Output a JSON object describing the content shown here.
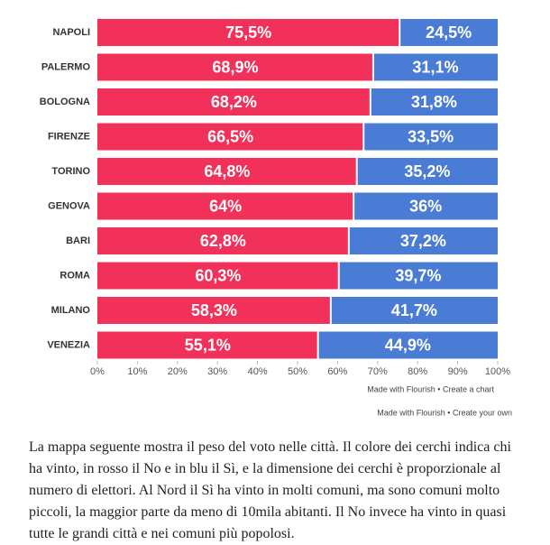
{
  "chart_data": {
    "type": "stacked-bar-horizontal",
    "categories": [
      "NAPOLI",
      "PALERMO",
      "BOLOGNA",
      "FIRENZE",
      "TORINO",
      "GENOVA",
      "BARI",
      "ROMA",
      "MILANO",
      "VENEZIA"
    ],
    "series": [
      {
        "color": "#f2315a",
        "values": [
          75.5,
          68.9,
          68.2,
          66.5,
          64.8,
          64,
          62.8,
          60.3,
          58.3,
          55.1
        ],
        "value_labels": [
          "75,5%",
          "68,9%",
          "68,2%",
          "66,5%",
          "64,8%",
          "64%",
          "62,8%",
          "60,3%",
          "58,3%",
          "55,1%"
        ]
      },
      {
        "color": "#4a7cd6",
        "values": [
          24.5,
          31.1,
          31.8,
          33.5,
          35.2,
          36,
          37.2,
          39.7,
          41.7,
          44.9
        ],
        "value_labels": [
          "24,5%",
          "31,1%",
          "31,8%",
          "33,5%",
          "35,2%",
          "36%",
          "37,2%",
          "39,7%",
          "41,7%",
          "44,9%"
        ]
      }
    ],
    "xlim": [
      0,
      100
    ],
    "xticks": [
      {
        "value": 0,
        "label": "0%"
      },
      {
        "value": 10,
        "label": "10%"
      },
      {
        "value": 20,
        "label": "20%"
      },
      {
        "value": 30,
        "label": "30%"
      },
      {
        "value": 40,
        "label": "40%"
      },
      {
        "value": 50,
        "label": "50%"
      },
      {
        "value": 60,
        "label": "60%"
      },
      {
        "value": 70,
        "label": "70%"
      },
      {
        "value": 80,
        "label": "80%"
      },
      {
        "value": 90,
        "label": "90%"
      },
      {
        "value": 100,
        "label": "100%"
      }
    ],
    "footer": "Made with Flourish • Create a chart"
  },
  "page_footer": "Made with Flourish • Create your own",
  "paragraph": "La mappa seguente mostra il peso del voto nelle città. Il colore dei cerchi indica chi ha vinto, in rosso il No e in blu il Sì, e la dimensione dei cerchi è proporzionale al numero di elettori. Al Nord il Sì ha vinto in molti comuni, ma sono comuni molto piccoli, la maggior parte da meno di 10mila abitanti. Il No invece ha vinto in quasi tutte le grandi città e nei comuni più popolosi."
}
